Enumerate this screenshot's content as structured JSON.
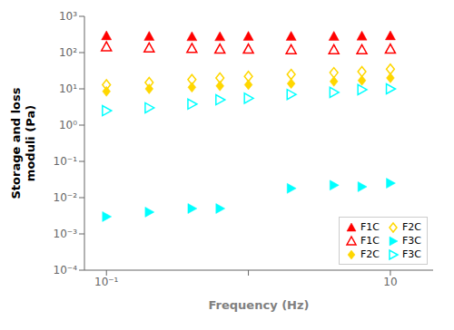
{
  "chart_data": {
    "type": "scatter",
    "xlabel": "Frequency (Hz)",
    "ylabel": "Storage and loss\nmoduli (Pa)",
    "log": true,
    "xlim": [
      0.07,
      20
    ],
    "ylim": [
      0.0001,
      1000
    ],
    "xticks": [
      {
        "value": 0.1,
        "label": "10⁻¹"
      },
      {
        "value": 1,
        "label": null
      },
      {
        "value": 10,
        "label": "10"
      }
    ],
    "yticks": [
      {
        "value": 0.0001,
        "label": "10⁻⁴"
      },
      {
        "value": 0.001,
        "label": "10⁻³"
      },
      {
        "value": 0.01,
        "label": "10⁻²"
      },
      {
        "value": 0.1,
        "label": "10⁻¹"
      },
      {
        "value": 1,
        "label": "10⁰"
      },
      {
        "value": 10,
        "label": "10¹"
      },
      {
        "value": 100,
        "label": "10²"
      },
      {
        "value": 1000,
        "label": "10³"
      }
    ],
    "grid": false,
    "legend": "lower right",
    "series": [
      {
        "name": "F1C",
        "color": "#FF0000",
        "marker": "triangle-up",
        "x": [
          0.1,
          0.2,
          0.4,
          0.63,
          1.0,
          2.0,
          4.0,
          6.3,
          10.0
        ],
        "values": [
          290,
          280,
          275,
          275,
          280,
          280,
          280,
          285,
          290
        ]
      },
      {
        "name": "F1C",
        "color": "#FF0000",
        "marker": "triangle-up-open",
        "x": [
          0.1,
          0.2,
          0.4,
          0.63,
          1.0,
          2.0,
          4.0,
          6.3,
          10.0
        ],
        "values": [
          145,
          135,
          130,
          125,
          125,
          120,
          120,
          120,
          125
        ]
      },
      {
        "name": "F2C",
        "color": "#FFD700",
        "marker": "diamond",
        "x": [
          0.1,
          0.2,
          0.4,
          0.63,
          1.0,
          2.0,
          4.0,
          6.3,
          10.0
        ],
        "values": [
          8.5,
          10,
          11,
          12,
          13,
          14,
          16,
          17,
          20
        ]
      },
      {
        "name": "F2C",
        "color": "#FFD700",
        "marker": "diamond-open",
        "x": [
          0.1,
          0.2,
          0.4,
          0.63,
          1.0,
          2.0,
          4.0,
          6.3,
          10.0
        ],
        "values": [
          13,
          15,
          18,
          20,
          22,
          25,
          28,
          30,
          35
        ]
      },
      {
        "name": "F3C",
        "color": "#00FFFF",
        "marker": "triangle-right",
        "x": [
          0.1,
          0.2,
          0.4,
          0.63,
          2.0,
          4.0,
          6.3,
          10.0
        ],
        "values": [
          0.003,
          0.004,
          0.005,
          0.005,
          0.018,
          0.022,
          0.02,
          0.025
        ]
      },
      {
        "name": "F3C",
        "color": "#00FFFF",
        "marker": "triangle-right-open",
        "x": [
          0.1,
          0.2,
          0.4,
          0.63,
          1.0,
          2.0,
          4.0,
          6.3,
          10.0
        ],
        "values": [
          2.5,
          3.0,
          3.8,
          5.0,
          5.5,
          7.0,
          8.0,
          9.5,
          10.0
        ]
      }
    ]
  }
}
